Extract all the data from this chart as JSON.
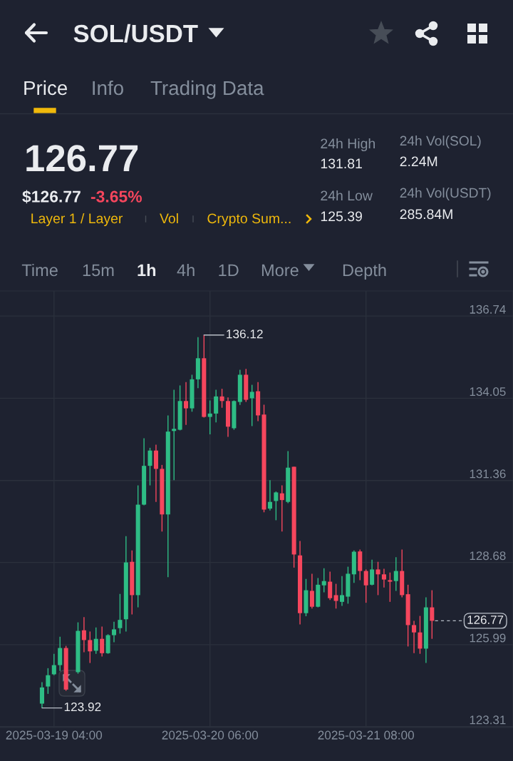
{
  "chart_data": {
    "type": "candlestick",
    "title": "SOL/USDT",
    "x": [
      "2025-03-19T02:00",
      "2025-03-19T03:00",
      "2025-03-19T04:00",
      "2025-03-19T05:00",
      "2025-03-19T06:00",
      "2025-03-19T08:00",
      "2025-03-19T09:00",
      "2025-03-19T10:00",
      "2025-03-19T11:00",
      "2025-03-19T12:00",
      "2025-03-19T13:00",
      "2025-03-19T14:00",
      "2025-03-19T15:00",
      "2025-03-19T16:00",
      "2025-03-19T17:00",
      "2025-03-19T18:00",
      "2025-03-19T19:00",
      "2025-03-19T20:00",
      "2025-03-19T21:00",
      "2025-03-19T22:00",
      "2025-03-19T23:00",
      "2025-03-20T00:00",
      "2025-03-20T01:00",
      "2025-03-20T02:00",
      "2025-03-20T03:00",
      "2025-03-20T04:00",
      "2025-03-20T05:00",
      "2025-03-20T06:00",
      "2025-03-20T07:00",
      "2025-03-20T08:00",
      "2025-03-20T09:00",
      "2025-03-20T10:00",
      "2025-03-20T11:00",
      "2025-03-20T12:00",
      "2025-03-20T13:00",
      "2025-03-20T14:00",
      "2025-03-20T15:00",
      "2025-03-20T16:00",
      "2025-03-20T17:00",
      "2025-03-20T18:00",
      "2025-03-20T19:00",
      "2025-03-20T20:00",
      "2025-03-20T21:00",
      "2025-03-20T22:00",
      "2025-03-20T23:00",
      "2025-03-21T00:00",
      "2025-03-21T01:00",
      "2025-03-21T02:00",
      "2025-03-21T03:00",
      "2025-03-21T04:00",
      "2025-03-21T05:00",
      "2025-03-21T06:00",
      "2025-03-21T07:00",
      "2025-03-21T08:00",
      "2025-03-21T09:00",
      "2025-03-21T10:00",
      "2025-03-21T11:00",
      "2025-03-21T12:00",
      "2025-03-21T13:00",
      "2025-03-21T14:00",
      "2025-03-21T15:00",
      "2025-03-21T16:00",
      "2025-03-21T17:00",
      "2025-03-21T18:00",
      "2025-03-21T19:00"
    ],
    "ohlc": [
      [
        124.06,
        124.76,
        123.92,
        124.59
      ],
      [
        124.62,
        125.22,
        124.38,
        124.99
      ],
      [
        125.02,
        125.69,
        124.99,
        125.32
      ],
      [
        125.32,
        126.25,
        125.13,
        125.88
      ],
      [
        125.88,
        125.95,
        124.48,
        124.52
      ],
      [
        125.09,
        126.72,
        125.04,
        126.44
      ],
      [
        126.46,
        126.89,
        125.74,
        126.14
      ],
      [
        126.14,
        126.42,
        125.39,
        125.77
      ],
      [
        125.79,
        126.55,
        125.69,
        126.18
      ],
      [
        126.18,
        126.58,
        125.6,
        125.71
      ],
      [
        125.71,
        126.33,
        125.69,
        126.3
      ],
      [
        126.3,
        126.74,
        126.07,
        126.49
      ],
      [
        126.53,
        127.65,
        126.35,
        126.8
      ],
      [
        126.82,
        129.54,
        126.42,
        128.68
      ],
      [
        128.7,
        129.07,
        126.98,
        127.61
      ],
      [
        127.61,
        131.2,
        127.21,
        130.57
      ],
      [
        130.57,
        132.74,
        130.55,
        131.84
      ],
      [
        131.84,
        132.43,
        131.2,
        132.34
      ],
      [
        132.34,
        132.53,
        130.66,
        131.74
      ],
      [
        131.74,
        131.87,
        129.69,
        130.25
      ],
      [
        130.25,
        133.49,
        128.2,
        132.96
      ],
      [
        132.98,
        134.33,
        131.37,
        133.05
      ],
      [
        133.02,
        134.47,
        133.0,
        133.96
      ],
      [
        133.96,
        134.58,
        133.18,
        133.72
      ],
      [
        133.72,
        134.82,
        133.61,
        134.67
      ],
      [
        134.67,
        136.05,
        134.38,
        135.36
      ],
      [
        135.36,
        136.12,
        133.42,
        133.44
      ],
      [
        133.44,
        133.98,
        132.87,
        133.55
      ],
      [
        133.55,
        134.33,
        133.26,
        134.11
      ],
      [
        134.11,
        134.36,
        133.74,
        133.96
      ],
      [
        133.96,
        134.08,
        132.79,
        133.12
      ],
      [
        133.07,
        133.98,
        133.02,
        133.96
      ],
      [
        133.93,
        134.98,
        133.83,
        134.82
      ],
      [
        134.82,
        135.01,
        133.93,
        134.0
      ],
      [
        134.05,
        134.49,
        133.14,
        134.26
      ],
      [
        134.28,
        134.58,
        133.3,
        133.49
      ],
      [
        133.52,
        133.84,
        130.32,
        130.41
      ],
      [
        130.44,
        131.37,
        130.38,
        130.66
      ],
      [
        130.69,
        131.0,
        130.06,
        130.97
      ],
      [
        130.94,
        131.2,
        129.69,
        130.72
      ],
      [
        130.66,
        132.32,
        130.62,
        131.78
      ],
      [
        131.81,
        131.81,
        128.51,
        128.94
      ],
      [
        128.91,
        129.38,
        126.65,
        127.02
      ],
      [
        127.02,
        128.14,
        126.92,
        127.77
      ],
      [
        127.75,
        128.31,
        127.17,
        127.23
      ],
      [
        127.23,
        128.17,
        127.21,
        127.95
      ],
      [
        127.93,
        128.49,
        127.7,
        128.07
      ],
      [
        128.05,
        128.38,
        127.45,
        127.51
      ],
      [
        127.61,
        127.98,
        127.17,
        127.42
      ],
      [
        127.39,
        128.23,
        127.26,
        127.61
      ],
      [
        127.56,
        128.54,
        127.33,
        128.31
      ],
      [
        128.29,
        129.07,
        128.01,
        129.03
      ],
      [
        129.04,
        129.1,
        128.1,
        128.4
      ],
      [
        128.4,
        128.45,
        127.36,
        127.93
      ],
      [
        127.95,
        128.77,
        127.93,
        128.45
      ],
      [
        128.45,
        128.7,
        127.61,
        128.29
      ],
      [
        128.29,
        128.47,
        127.86,
        128.12
      ],
      [
        128.1,
        128.35,
        127.39,
        128.05
      ],
      [
        128.07,
        128.85,
        127.75,
        128.4
      ],
      [
        128.4,
        129.1,
        127.54,
        127.61
      ],
      [
        127.64,
        127.95,
        125.93,
        126.63
      ],
      [
        126.63,
        126.77,
        125.71,
        126.39
      ],
      [
        126.39,
        126.93,
        125.69,
        125.86
      ],
      [
        125.86,
        127.54,
        125.39,
        127.21
      ],
      [
        127.21,
        127.77,
        126.18,
        126.77
      ]
    ],
    "colors": [
      "#2ebd85",
      "#2ebd85",
      "#2ebd85",
      "#2ebd85",
      "#f6465d",
      "#2ebd85",
      "#f6465d",
      "#f6465d",
      "#2ebd85",
      "#f6465d",
      "#2ebd85",
      "#2ebd85",
      "#2ebd85",
      "#2ebd85",
      "#f6465d",
      "#2ebd85",
      "#2ebd85",
      "#2ebd85",
      "#f6465d",
      "#f6465d",
      "#2ebd85",
      "#2ebd85",
      "#2ebd85",
      "#f6465d",
      "#2ebd85",
      "#2ebd85",
      "#f6465d",
      "#2ebd85",
      "#2ebd85",
      "#f6465d",
      "#f6465d",
      "#2ebd85",
      "#2ebd85",
      "#f6465d",
      "#2ebd85",
      "#f6465d",
      "#f6465d",
      "#2ebd85",
      "#2ebd85",
      "#f6465d",
      "#2ebd85",
      "#f6465d",
      "#f6465d",
      "#2ebd85",
      "#f6465d",
      "#2ebd85",
      "#2ebd85",
      "#f6465d",
      "#f6465d",
      "#2ebd85",
      "#2ebd85",
      "#2ebd85",
      "#f6465d",
      "#f6465d",
      "#2ebd85",
      "#f6465d",
      "#f6465d",
      "#f6465d",
      "#2ebd85",
      "#f6465d",
      "#f6465d",
      "#f6465d",
      "#f6465d",
      "#2ebd85",
      "#f6465d"
    ],
    "xlim": [
      "2025-03-18T19:00",
      "2025-03-22T08:30"
    ],
    "xticks": [
      {
        "value": "2025-03-19T04:00",
        "label": "2025-03-19 04:00"
      },
      {
        "value": "2025-03-20T06:00",
        "label": "2025-03-20 06:00"
      },
      {
        "value": "2025-03-21T08:00",
        "label": "2025-03-21 08:00"
      }
    ],
    "ylim": [
      123.28,
      137.56
    ],
    "yticks": [
      123.31,
      125.99,
      128.68,
      131.36,
      134.05,
      136.74
    ],
    "grid": true,
    "ref_lines": [
      {
        "axis": "y",
        "value": 126.77,
        "label": "126.77",
        "line_style": "dashed",
        "color": "#b7bdc6"
      }
    ],
    "annotations": [
      {
        "text": "136.12",
        "x": "2025-03-20T05:00",
        "y": 136.12
      },
      {
        "text": "123.92",
        "x": "2025-03-19T02:00",
        "y": 123.92
      },
      "Price",
      "Info",
      "Trading Data",
      "126.77",
      "$126.77",
      "-3.65%",
      "Layer 1 / Layer",
      "Vol",
      "Crypto Sum...",
      "24h High",
      "131.81",
      "24h Low",
      "125.39",
      "24h Vol(SOL)",
      "2.24M",
      "24h Vol(USDT)",
      "285.84M",
      "Time",
      "15m",
      "1h",
      "4h",
      "1D",
      "More",
      "Depth"
    ]
  }
}
